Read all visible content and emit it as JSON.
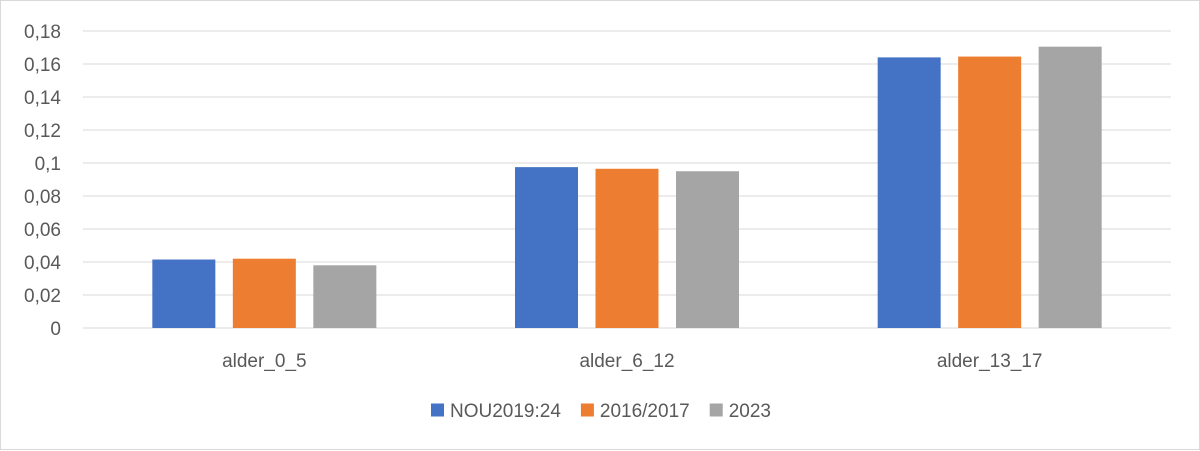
{
  "chart_data": {
    "type": "bar",
    "categories": [
      "alder_0_5",
      "alder_6_12",
      "alder_13_17"
    ],
    "series": [
      {
        "name": "NOU2019:24",
        "color": "#4472C4",
        "values": [
          0.0415,
          0.0975,
          0.164
        ]
      },
      {
        "name": "2016/2017",
        "color": "#ED7D31",
        "values": [
          0.042,
          0.0965,
          0.1645
        ]
      },
      {
        "name": "2023",
        "color": "#A5A5A5",
        "values": [
          0.038,
          0.095,
          0.1705
        ]
      }
    ],
    "yticks": [
      "0",
      "0,02",
      "0,04",
      "0,06",
      "0,08",
      "0,1",
      "0,12",
      "0,14",
      "0,16",
      "0,18"
    ],
    "ylim": [
      0,
      0.18
    ],
    "grid": true,
    "legend_position": "bottom"
  }
}
